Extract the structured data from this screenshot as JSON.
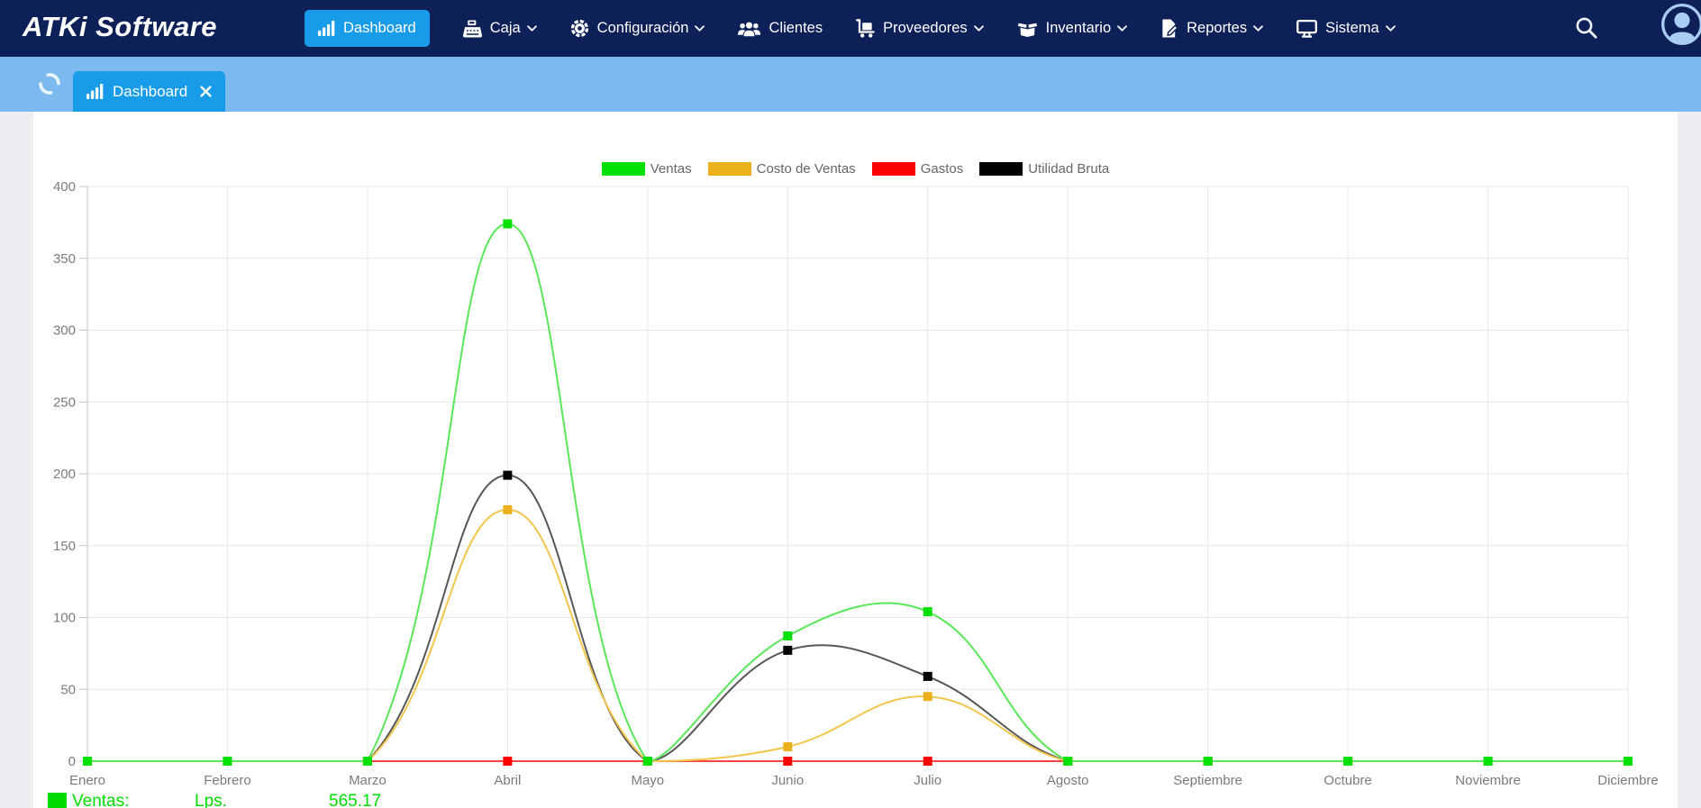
{
  "navbar": {
    "logo": "ATKi Software",
    "items": [
      {
        "label": "Dashboard",
        "icon": "chart-bars",
        "chevron": false,
        "active": true
      },
      {
        "label": "Caja",
        "icon": "cash-register",
        "chevron": true,
        "active": false
      },
      {
        "label": "Configuración",
        "icon": "gear",
        "chevron": true,
        "active": false
      },
      {
        "label": "Clientes",
        "icon": "users",
        "chevron": false,
        "active": false
      },
      {
        "label": "Proveedores",
        "icon": "dolly",
        "chevron": true,
        "active": false
      },
      {
        "label": "Inventario",
        "icon": "box-open",
        "chevron": true,
        "active": false
      },
      {
        "label": "Reportes",
        "icon": "file-pen",
        "chevron": true,
        "active": false
      },
      {
        "label": "Sistema",
        "icon": "desktop",
        "chevron": true,
        "active": false
      }
    ]
  },
  "tabbar": {
    "active_tab": {
      "label": "Dashboard",
      "icon": "chart-bars",
      "closable": true
    },
    "loading_spinner": true
  },
  "summary_row": {
    "label": "Ventas:",
    "currency": "Lps.",
    "value": "565.17",
    "color": "#00db00"
  },
  "colors": {
    "navbar_bg": "#0d2057",
    "accent_blue": "#189ce9",
    "tabbar_bg": "#7cb9ee",
    "page_bg": "#edeef2",
    "card_bg": "#ffffff",
    "grid": "#e7e7e7",
    "axis_line": "#c5c5c5",
    "axis_text": "#7b7b7b",
    "legend_text": "#666666"
  },
  "chart_data": {
    "type": "line",
    "title": "",
    "xlabel": "",
    "ylabel": "",
    "categories": [
      "Enero",
      "Febrero",
      "Marzo",
      "Abril",
      "Mayo",
      "Junio",
      "Julio",
      "Agosto",
      "Septiembre",
      "Octubre",
      "Noviembre",
      "Diciembre"
    ],
    "series": [
      {
        "name": "Ventas",
        "color": "#00e005",
        "line_color": "#59e659",
        "values": [
          0,
          0,
          0,
          374,
          0,
          87.17,
          104,
          0,
          0,
          0,
          0,
          0
        ]
      },
      {
        "name": "Costo de Ventas",
        "color": "#eab11d",
        "line_color": "#f2c54b",
        "values": [
          0,
          0,
          0,
          175,
          0,
          10,
          45,
          0,
          0,
          0,
          0,
          0
        ]
      },
      {
        "name": "Gastos",
        "color": "#fb0000",
        "line_color": "#f64444",
        "values": [
          0,
          0,
          0,
          0,
          0,
          0,
          0,
          0,
          0,
          0,
          0,
          0
        ]
      },
      {
        "name": "Utilidad Bruta",
        "color": "#000000",
        "line_color": "#575757",
        "values": [
          0,
          0,
          0,
          199,
          0,
          77.17,
          59,
          0,
          0,
          0,
          0,
          0
        ]
      }
    ],
    "ylim": [
      0,
      400
    ],
    "ytick_step": 50,
    "legend_position": "top",
    "grid": true,
    "point_style": "rect",
    "curve": "spline tension 0.4, control points clamped to plot area"
  }
}
